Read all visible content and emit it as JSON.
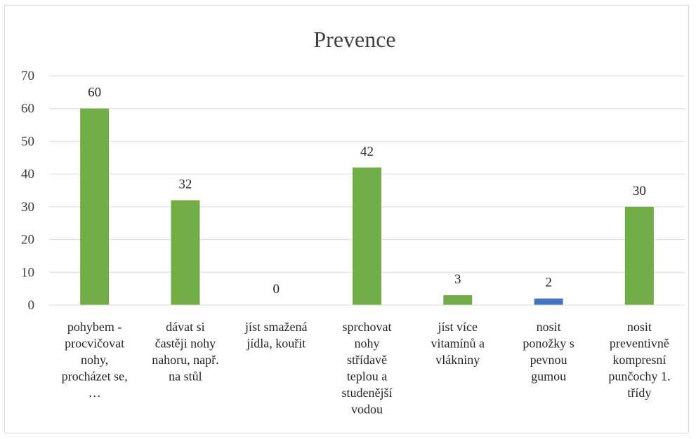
{
  "chart_data": {
    "type": "bar",
    "title": "Prevence",
    "xlabel": "",
    "ylabel": "",
    "ylim": [
      0,
      70
    ],
    "yticks": [
      0,
      10,
      20,
      30,
      40,
      50,
      60,
      70
    ],
    "grid": true,
    "legend": "none",
    "categories": [
      "pohybem - procvičovat nohy, procházet se, …",
      "dávat si častěji nohy nahoru, např. na stůl",
      "jíst smažená jídla, kouřit",
      "sprchovat nohy střídavě teplou a studenější vodou",
      "jíst více vitamínů a vlákniny",
      "nosit ponožky s pevnou gumou",
      "nosit preventivně kompresní punčochy 1. třídy"
    ],
    "category_lines": [
      [
        "pohybem -",
        "procvičovat",
        "nohy,",
        "procházet se,",
        "…"
      ],
      [
        "dávat si",
        "častěji nohy",
        "nahoru, např.",
        "na stůl"
      ],
      [
        "jíst smažená",
        "jídla, kouřit"
      ],
      [
        "sprchovat",
        "nohy",
        "střídavě",
        "teplou a",
        "studenější",
        "vodou"
      ],
      [
        "jíst více",
        "vitamínů a",
        "vlákniny"
      ],
      [
        "nosit",
        "ponožky s",
        "pevnou",
        "gumou"
      ],
      [
        "nosit",
        "preventivně",
        "kompresní",
        "punčochy 1.",
        "třídy"
      ]
    ],
    "values": [
      60,
      32,
      0,
      42,
      3,
      2,
      30
    ],
    "bar_colors": [
      "#70ad47",
      "#70ad47",
      "#70ad47",
      "#70ad47",
      "#70ad47",
      "#4472c4",
      "#70ad47"
    ],
    "gridline_color": "#d9d9d9"
  }
}
